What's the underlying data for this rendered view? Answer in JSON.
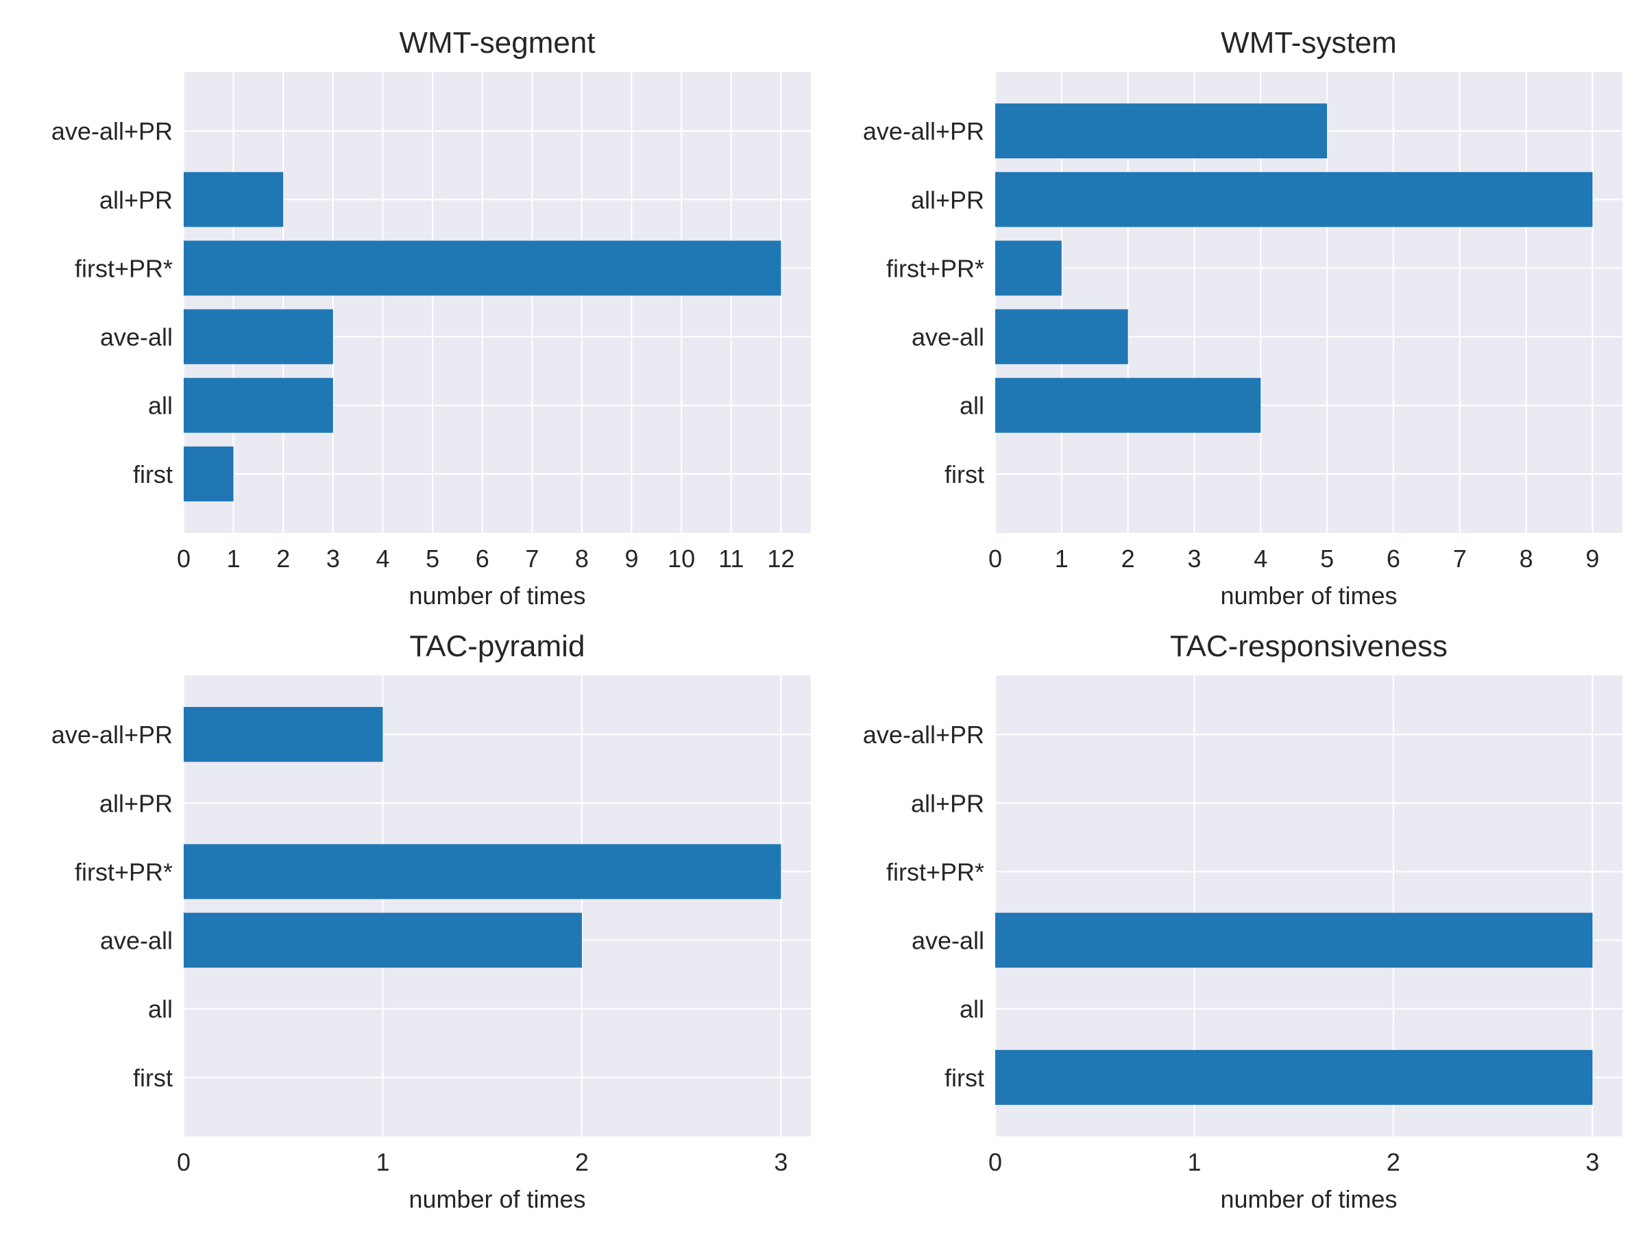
{
  "chart_data": [
    {
      "type": "bar",
      "orientation": "horizontal",
      "title": "WMT-segment",
      "xlabel": "number of times",
      "ylabel": "",
      "categories": [
        "first",
        "all",
        "ave-all",
        "first+PR*",
        "all+PR",
        "ave-all+PR"
      ],
      "values": [
        1,
        3,
        3,
        12,
        2,
        0
      ],
      "xlim": [
        0,
        12.6
      ],
      "xticks": [
        0,
        1,
        2,
        3,
        4,
        5,
        6,
        7,
        8,
        9,
        10,
        11,
        12
      ],
      "grid": true,
      "color": "#1f77b4"
    },
    {
      "type": "bar",
      "orientation": "horizontal",
      "title": "WMT-system",
      "xlabel": "number of times",
      "ylabel": "",
      "categories": [
        "first",
        "all",
        "ave-all",
        "first+PR*",
        "all+PR",
        "ave-all+PR"
      ],
      "values": [
        0,
        4,
        2,
        1,
        9,
        5
      ],
      "xlim": [
        0,
        9.45
      ],
      "xticks": [
        0,
        1,
        2,
        3,
        4,
        5,
        6,
        7,
        8,
        9
      ],
      "grid": true,
      "color": "#1f77b4"
    },
    {
      "type": "bar",
      "orientation": "horizontal",
      "title": "TAC-pyramid",
      "xlabel": "number of times",
      "ylabel": "",
      "categories": [
        "first",
        "all",
        "ave-all",
        "first+PR*",
        "all+PR",
        "ave-all+PR"
      ],
      "values": [
        0,
        0,
        2,
        3,
        0,
        1
      ],
      "xlim": [
        0,
        3.15
      ],
      "xticks": [
        0,
        1,
        2,
        3
      ],
      "grid": true,
      "color": "#1f77b4"
    },
    {
      "type": "bar",
      "orientation": "horizontal",
      "title": "TAC-responsiveness",
      "xlabel": "number of times",
      "ylabel": "",
      "categories": [
        "first",
        "all",
        "ave-all",
        "first+PR*",
        "all+PR",
        "ave-all+PR"
      ],
      "values": [
        3,
        0,
        3,
        0,
        0,
        0
      ],
      "xlim": [
        0,
        3.15
      ],
      "xticks": [
        0,
        1,
        2,
        3
      ],
      "grid": true,
      "color": "#1f77b4"
    }
  ]
}
